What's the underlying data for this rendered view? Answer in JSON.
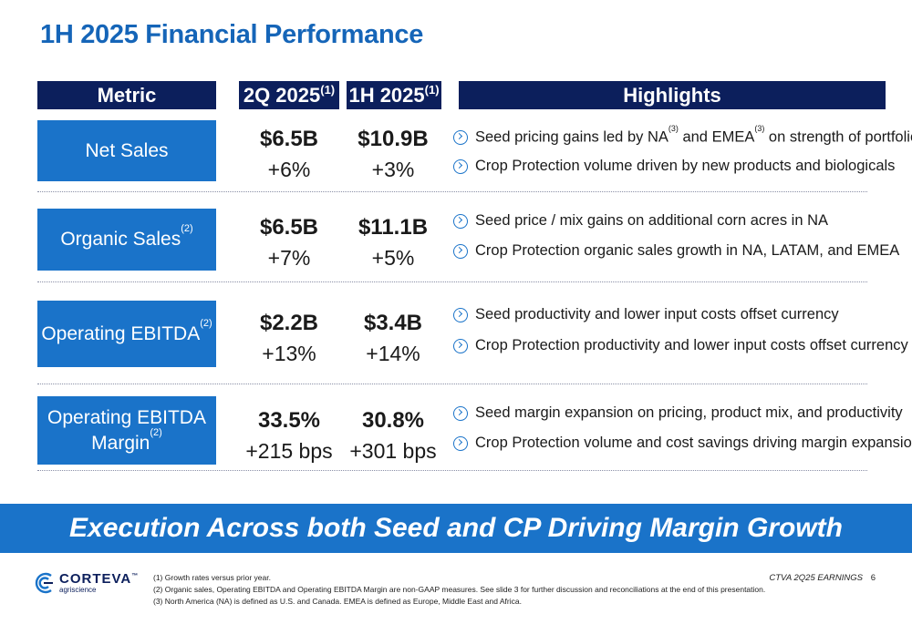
{
  "title": "1H 2025 Financial Performance",
  "headers": {
    "metric": "Metric",
    "q2": "2Q 2025",
    "q2_note": "(1)",
    "h1": "1H 2025",
    "h1_note": "(1)",
    "highlights": "Highlights"
  },
  "rows": [
    {
      "metric": "Net Sales",
      "metric_note": "",
      "q2_value": "$6.5B",
      "q2_change": "+6%",
      "h1_value": "$10.9B",
      "h1_change": "+3%",
      "highlights": [
        {
          "a": "Seed pricing gains led by NA",
          "n1": "(3)",
          "b": " and EMEA",
          "n2": "(3)",
          "c": " on strength of portfolio"
        },
        {
          "a": "Crop Protection volume driven by new products and biologicals",
          "n1": "",
          "b": "",
          "n2": "",
          "c": ""
        }
      ]
    },
    {
      "metric": "Organic Sales",
      "metric_note": "(2)",
      "q2_value": "$6.5B",
      "q2_change": "+7%",
      "h1_value": "$11.1B",
      "h1_change": "+5%",
      "highlights": [
        {
          "a": "Seed price / mix gains on additional corn acres in NA",
          "n1": "",
          "b": "",
          "n2": "",
          "c": ""
        },
        {
          "a": "Crop Protection organic sales growth in NA, LATAM, and EMEA",
          "n1": "",
          "b": "",
          "n2": "",
          "c": ""
        }
      ]
    },
    {
      "metric": "Operating EBITDA",
      "metric_note": "(2)",
      "q2_value": "$2.2B",
      "q2_change": "+13%",
      "h1_value": "$3.4B",
      "h1_change": "+14%",
      "highlights": [
        {
          "a": "Seed productivity and lower input costs offset currency",
          "n1": "",
          "b": "",
          "n2": "",
          "c": ""
        },
        {
          "a": "Crop Protection productivity and lower input costs offset currency",
          "n1": "",
          "b": "",
          "n2": "",
          "c": ""
        }
      ]
    },
    {
      "metric_line1": "Operating EBITDA",
      "metric_line2": "Margin",
      "metric_note": "(2)",
      "q2_value": "33.5%",
      "q2_change": "+215 bps",
      "h1_value": "30.8%",
      "h1_change": "+301 bps",
      "highlights": [
        {
          "a": "Seed margin expansion on pricing, product mix, and productivity",
          "n1": "",
          "b": "",
          "n2": "",
          "c": ""
        },
        {
          "a": "Crop Protection volume and cost savings driving margin expansion",
          "n1": "",
          "b": "",
          "n2": "",
          "c": ""
        }
      ]
    }
  ],
  "banner": "Execution Across both Seed and CP Driving Margin Growth",
  "logo": {
    "name": "CORTEVA",
    "tm": "™",
    "sub": "agriscience"
  },
  "footnotes": [
    "(1)  Growth rates versus prior year.",
    "(2)  Organic sales, Operating EBITDA and Operating EBITDA Margin are non-GAAP measures. See slide 3 for further discussion and reconciliations at the end of this presentation.",
    "(3)  North America (NA) is defined as U.S. and Canada. EMEA is defined as Europe, Middle East and Africa."
  ],
  "footer_label": "CTVA 2Q25 EARNINGS",
  "page_number": "6",
  "colors": {
    "navy": "#0c1f5c",
    "blue": "#1a73c9",
    "title_blue": "#1565b8"
  }
}
